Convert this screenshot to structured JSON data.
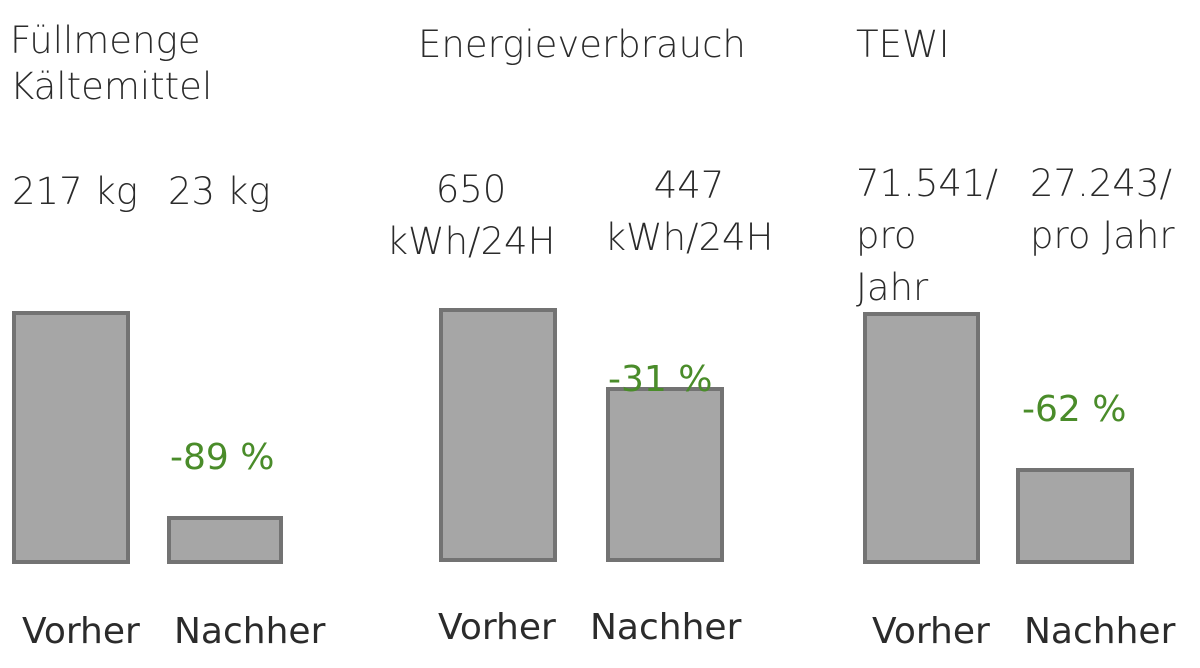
{
  "chart_data": [
    {
      "type": "bar",
      "title": "Füllmenge Kältemittel",
      "title_lines": [
        "Füllmenge",
        "Kältemittel"
      ],
      "categories": [
        "Vorher",
        "Nachher"
      ],
      "values": [
        217,
        23
      ],
      "value_labels": [
        [
          "217 kg"
        ],
        [
          "23 kg"
        ]
      ],
      "change_label": "-89 %",
      "bar_color": "#a6a6a6",
      "border_color": "#737373"
    },
    {
      "type": "bar",
      "title": "Energieverbrauch",
      "title_lines": [
        "Energieverbrauch"
      ],
      "categories": [
        "Vorher",
        "Nachher"
      ],
      "values": [
        650,
        447
      ],
      "value_labels": [
        [
          "650",
          "kWh/24H"
        ],
        [
          "447",
          "kWh/24H"
        ]
      ],
      "change_label": "-31 %",
      "bar_color": "#a6a6a6",
      "border_color": "#737373"
    },
    {
      "type": "bar",
      "title": "TEWI",
      "title_lines": [
        "TEWI"
      ],
      "categories": [
        "Vorher",
        "Nachher"
      ],
      "values": [
        71541,
        27243
      ],
      "value_labels": [
        [
          "71.541/",
          "pro",
          "Jahr"
        ],
        [
          "27.243/",
          "pro Jahr"
        ]
      ],
      "change_label": "-62 %",
      "bar_color": "#a6a6a6",
      "border_color": "#737373"
    }
  ],
  "colors": {
    "accent_green": "#4a8c2a",
    "text": "#2b2b2b"
  }
}
